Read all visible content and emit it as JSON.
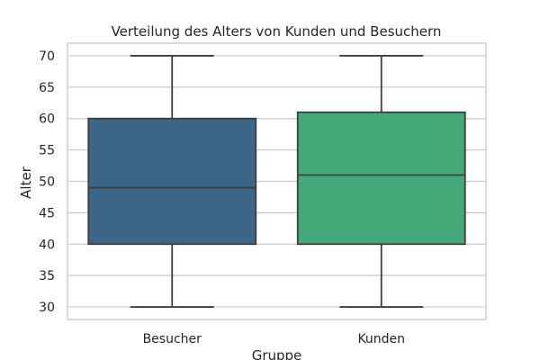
{
  "chart_data": {
    "type": "box",
    "title": "Verteilung des Alters von Kunden und Besuchern",
    "xlabel": "Gruppe",
    "ylabel": "Alter",
    "ylim": [
      28,
      72
    ],
    "yticks": [
      30,
      35,
      40,
      45,
      50,
      55,
      60,
      65,
      70
    ],
    "grid": true,
    "categories": [
      "Besucher",
      "Kunden"
    ],
    "boxes": [
      {
        "name": "Besucher",
        "min": 30,
        "q1": 40,
        "median": 49,
        "q3": 60,
        "max": 70,
        "color": "#3b6687"
      },
      {
        "name": "Kunden",
        "min": 30,
        "q1": 40,
        "median": 51,
        "q3": 61,
        "max": 70,
        "color": "#44a878"
      }
    ]
  }
}
